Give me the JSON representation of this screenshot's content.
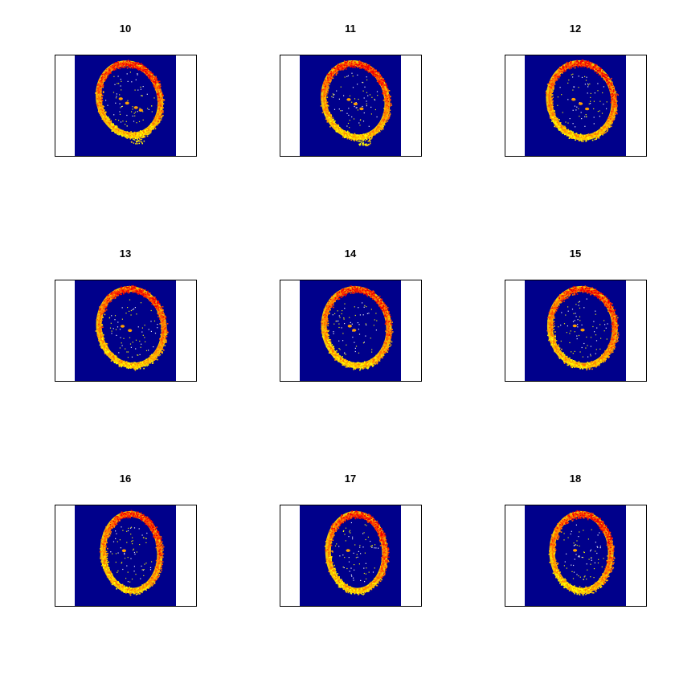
{
  "chart_data": {
    "type": "heatmap",
    "layout": "3x3 grid of image panels",
    "background_color": "#00008b",
    "ring_colors": [
      "#ffff00",
      "#ffc400",
      "#ff8c00",
      "#ff4000",
      "#ee0000"
    ],
    "panels": [
      {
        "title": "10",
        "ring": {
          "cx": 0.54,
          "cy": 0.44,
          "rx": 0.3,
          "ry": 0.36,
          "rot": -18
        },
        "tail": true,
        "spots": 4
      },
      {
        "title": "11",
        "ring": {
          "cx": 0.55,
          "cy": 0.45,
          "rx": 0.31,
          "ry": 0.37,
          "rot": -15
        },
        "tail": true,
        "spots": 3
      },
      {
        "title": "12",
        "ring": {
          "cx": 0.56,
          "cy": 0.45,
          "rx": 0.32,
          "ry": 0.37,
          "rot": -12
        },
        "tail": false,
        "spots": 3
      },
      {
        "title": "13",
        "ring": {
          "cx": 0.56,
          "cy": 0.47,
          "rx": 0.32,
          "ry": 0.38,
          "rot": -10
        },
        "tail": false,
        "spots": 2
      },
      {
        "title": "14",
        "ring": {
          "cx": 0.56,
          "cy": 0.47,
          "rx": 0.32,
          "ry": 0.38,
          "rot": -8
        },
        "tail": false,
        "spots": 2
      },
      {
        "title": "15",
        "ring": {
          "cx": 0.57,
          "cy": 0.47,
          "rx": 0.32,
          "ry": 0.38,
          "rot": -6
        },
        "tail": false,
        "spots": 2
      },
      {
        "title": "16",
        "ring": {
          "cx": 0.56,
          "cy": 0.47,
          "rx": 0.28,
          "ry": 0.38,
          "rot": -4
        },
        "tail": false,
        "spots": 1
      },
      {
        "title": "17",
        "ring": {
          "cx": 0.56,
          "cy": 0.47,
          "rx": 0.28,
          "ry": 0.38,
          "rot": -3
        },
        "tail": false,
        "spots": 1
      },
      {
        "title": "18",
        "ring": {
          "cx": 0.56,
          "cy": 0.47,
          "rx": 0.29,
          "ry": 0.38,
          "rot": -2
        },
        "tail": false,
        "spots": 1
      }
    ]
  }
}
